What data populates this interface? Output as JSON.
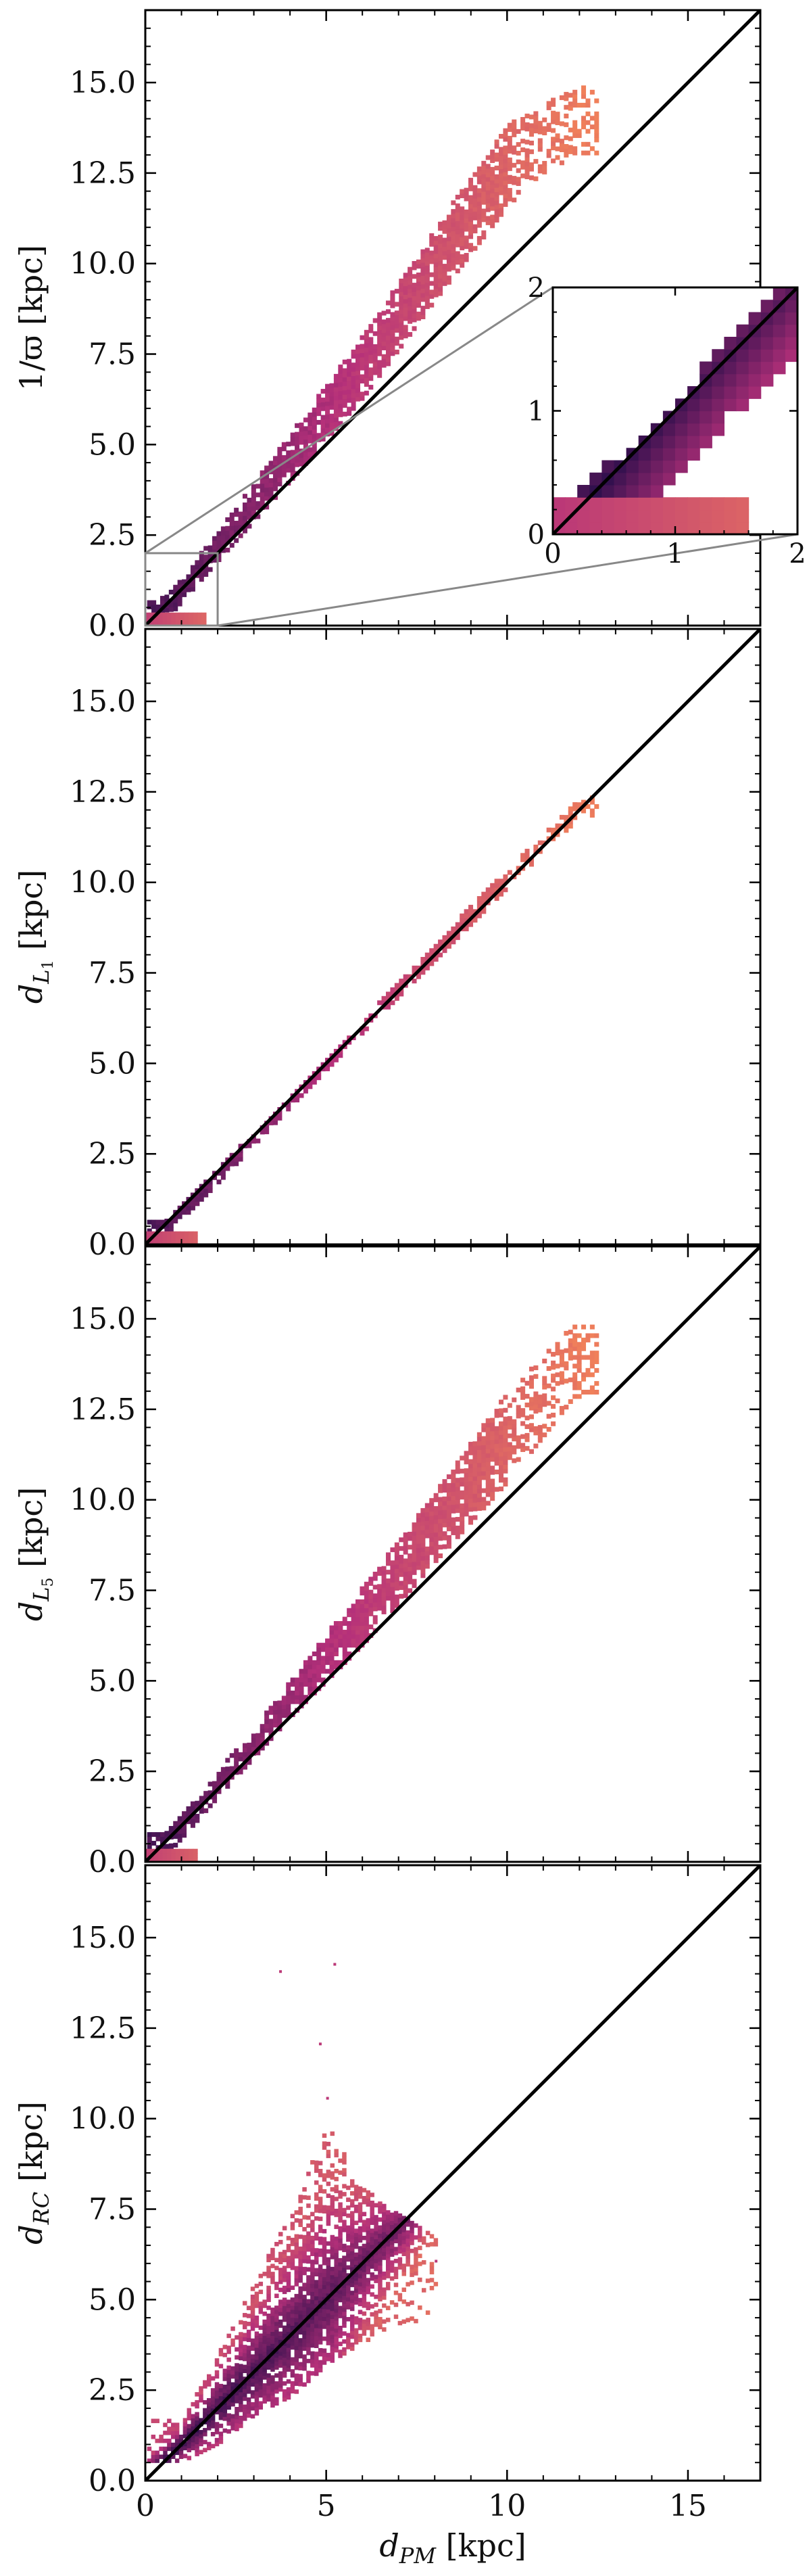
{
  "figure": {
    "x_axis_label": "d_PM [kpc]",
    "colormap_low": "#1a0a45",
    "colormap_high": "#f0805a",
    "identity_line_color": "#000000",
    "zoom_box_color": "#888888"
  },
  "chart_data": [
    {
      "type": "heatmap",
      "panel": "inv_parallax",
      "ylabel": "1/ϖ [kpc]",
      "xlabel": "",
      "xlim": [
        0,
        17
      ],
      "ylim": [
        0,
        17
      ],
      "xticks": [
        0,
        5,
        10,
        15
      ],
      "yticks": [
        0.0,
        2.5,
        5.0,
        7.5,
        10.0,
        12.5,
        15.0
      ],
      "xtick_labels": [],
      "ytick_labels": [
        "0.0",
        "2.5",
        "5.0",
        "7.5",
        "10.0",
        "12.5",
        "15.0"
      ],
      "identity_line": true,
      "band": {
        "x_max": 12.5,
        "relation": "y ≈ 1.1–1.3 × x",
        "points": [
          {
            "x": 0.5,
            "y_low": 0.1,
            "y_high": 0.7
          },
          {
            "x": 2.0,
            "y_low": 1.8,
            "y_high": 2.6
          },
          {
            "x": 4.0,
            "y_low": 4.0,
            "y_high": 5.3
          },
          {
            "x": 6.0,
            "y_low": 6.3,
            "y_high": 8.0
          },
          {
            "x": 8.0,
            "y_low": 9.0,
            "y_high": 11.0
          },
          {
            "x": 10.0,
            "y_low": 11.6,
            "y_high": 13.8
          },
          {
            "x": 11.8,
            "y_low": 13.0,
            "y_high": 14.8
          }
        ],
        "low_x_clump": {
          "x_range": [
            0,
            1.6
          ],
          "y_range": [
            0,
            0.35
          ]
        }
      },
      "inset": {
        "xlim": [
          0,
          2
        ],
        "ylim": [
          0,
          2
        ],
        "xticks": [
          0,
          1,
          2
        ],
        "yticks": [
          0,
          1,
          2
        ],
        "xtick_labels": [
          "0",
          "1",
          "2"
        ],
        "ytick_labels": [
          "0",
          "1",
          "2"
        ],
        "zoom_region": {
          "x": [
            0,
            2
          ],
          "y": [
            0,
            2
          ]
        }
      }
    },
    {
      "type": "heatmap",
      "panel": "L1",
      "ylabel": "d_L1 [kpc]",
      "xlabel": "",
      "xlim": [
        0,
        17
      ],
      "ylim": [
        0,
        17
      ],
      "xticks": [
        0,
        5,
        10,
        15
      ],
      "yticks": [
        0.0,
        2.5,
        5.0,
        7.5,
        10.0,
        12.5,
        15.0
      ],
      "xtick_labels": [],
      "ytick_labels": [
        "0.0",
        "2.5",
        "5.0",
        "7.5",
        "10.0",
        "12.5",
        "15.0"
      ],
      "identity_line": true,
      "band": {
        "x_max": 12.5,
        "relation": "y ≈ x",
        "points": [
          {
            "x": 0.5,
            "y_low": 0.2,
            "y_high": 0.6
          },
          {
            "x": 2.0,
            "y_low": 1.7,
            "y_high": 2.1
          },
          {
            "x": 4.0,
            "y_low": 3.8,
            "y_high": 4.1
          },
          {
            "x": 6.0,
            "y_low": 5.85,
            "y_high": 6.2
          },
          {
            "x": 8.0,
            "y_low": 7.85,
            "y_high": 8.3
          },
          {
            "x": 10.0,
            "y_low": 9.85,
            "y_high": 10.4
          },
          {
            "x": 12.0,
            "y_low": 11.8,
            "y_high": 12.3
          }
        ],
        "low_x_clump": {
          "x_range": [
            0,
            1.4
          ],
          "y_range": [
            0,
            0.3
          ]
        }
      }
    },
    {
      "type": "heatmap",
      "panel": "L5",
      "ylabel": "d_L5 [kpc]",
      "xlabel": "",
      "xlim": [
        0,
        17
      ],
      "ylim": [
        0,
        17
      ],
      "xticks": [
        0,
        5,
        10,
        15
      ],
      "yticks": [
        0.0,
        2.5,
        5.0,
        7.5,
        10.0,
        12.5,
        15.0
      ],
      "xtick_labels": [],
      "ytick_labels": [
        "0.0",
        "2.5",
        "5.0",
        "7.5",
        "10.0",
        "12.5",
        "15.0"
      ],
      "identity_line": true,
      "band": {
        "x_max": 12.5,
        "relation": "y ≈ 1.05–1.25 × x",
        "points": [
          {
            "x": 0.5,
            "y_low": 0.1,
            "y_high": 0.7
          },
          {
            "x": 2.0,
            "y_low": 1.8,
            "y_high": 2.5
          },
          {
            "x": 4.0,
            "y_low": 4.0,
            "y_high": 5.0
          },
          {
            "x": 6.0,
            "y_low": 6.0,
            "y_high": 7.6
          },
          {
            "x": 8.0,
            "y_low": 8.3,
            "y_high": 10.2
          },
          {
            "x": 10.0,
            "y_low": 10.5,
            "y_high": 13.0
          },
          {
            "x": 11.8,
            "y_low": 12.8,
            "y_high": 14.8
          }
        ],
        "low_x_clump": {
          "x_range": [
            0,
            1.4
          ],
          "y_range": [
            0,
            0.35
          ]
        }
      }
    },
    {
      "type": "heatmap",
      "panel": "RC",
      "ylabel": "d_RC [kpc]",
      "xlabel": "d_PM [kpc]",
      "xlim": [
        0,
        17
      ],
      "ylim": [
        0,
        17
      ],
      "xticks": [
        0,
        5,
        10,
        15
      ],
      "yticks": [
        0.0,
        2.5,
        5.0,
        7.5,
        10.0,
        12.5,
        15.0
      ],
      "xtick_labels": [
        "0",
        "5",
        "10",
        "15"
      ],
      "ytick_labels": [
        "0.0",
        "2.5",
        "5.0",
        "7.5",
        "10.0",
        "12.5",
        "15.0"
      ],
      "identity_line": true,
      "cloud": {
        "description": "broad scatter around y = x widening with distance",
        "core_points": [
          {
            "x": 1.0,
            "y_low": 0.5,
            "y_high": 1.7
          },
          {
            "x": 2.0,
            "y_low": 1.0,
            "y_high": 3.5
          },
          {
            "x": 3.0,
            "y_low": 1.8,
            "y_high": 5.5
          },
          {
            "x": 4.0,
            "y_low": 2.3,
            "y_high": 7.5
          },
          {
            "x": 5.0,
            "y_low": 3.2,
            "y_high": 9.8
          },
          {
            "x": 6.0,
            "y_low": 3.8,
            "y_high": 8.0
          },
          {
            "x": 7.0,
            "y_low": 4.2,
            "y_high": 7.3
          },
          {
            "x": 7.8,
            "y_low": 4.5,
            "y_high": 6.8
          }
        ],
        "outliers": [
          {
            "x": 3.7,
            "y": 14.0
          },
          {
            "x": 5.2,
            "y": 14.2
          },
          {
            "x": 4.8,
            "y": 12.0
          },
          {
            "x": 5.0,
            "y": 10.5
          },
          {
            "x": 8.0,
            "y": 6.0
          }
        ]
      }
    }
  ]
}
